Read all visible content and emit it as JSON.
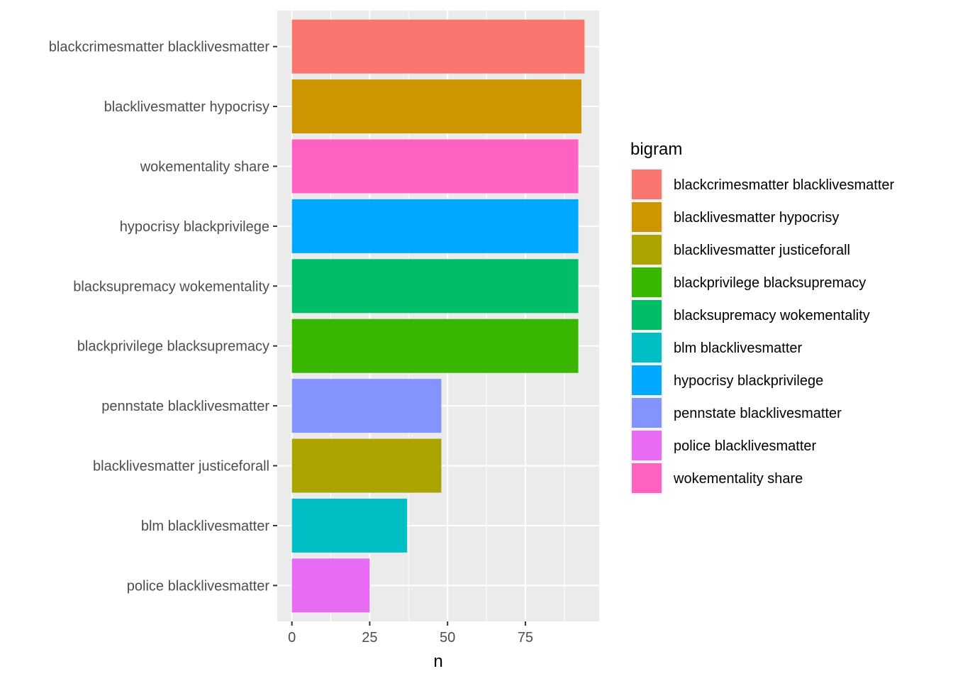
{
  "chart_data": {
    "type": "bar",
    "orientation": "horizontal",
    "categories": [
      "blackcrimesmatter blacklivesmatter",
      "blacklivesmatter hypocrisy",
      "wokementality share",
      "hypocrisy blackprivilege",
      "blacksupremacy wokementality",
      "blackprivilege blacksupremacy",
      "pennstate blacklivesmatter",
      "blacklivesmatter justiceforall",
      "blm blacklivesmatter",
      "police blacklivesmatter"
    ],
    "values": [
      94,
      93,
      92,
      92,
      92,
      92,
      48,
      48,
      37,
      25
    ],
    "colors": [
      "#F8766D",
      "#CD9600",
      "#FF61C3",
      "#00A9FF",
      "#00BE67",
      "#39B600",
      "#8494FF",
      "#ABA300",
      "#00BFC4",
      "#E76BF3"
    ],
    "xlabel": "n",
    "ylabel": "",
    "xlim": [
      -4.7,
      98.7
    ],
    "xticks": [
      0,
      25,
      50,
      75
    ],
    "grid": true,
    "legend_placement": "right",
    "legend": {
      "title": "bigram",
      "entries": [
        {
          "label": "blackcrimesmatter blacklivesmatter",
          "color": "#F8766D"
        },
        {
          "label": "blacklivesmatter hypocrisy",
          "color": "#CD9600"
        },
        {
          "label": "blacklivesmatter justiceforall",
          "color": "#ABA300"
        },
        {
          "label": "blackprivilege blacksupremacy",
          "color": "#39B600"
        },
        {
          "label": "blacksupremacy wokementality",
          "color": "#00BE67"
        },
        {
          "label": "blm blacklivesmatter",
          "color": "#00BFC4"
        },
        {
          "label": "hypocrisy blackprivilege",
          "color": "#00A9FF"
        },
        {
          "label": "pennstate blacklivesmatter",
          "color": "#8494FF"
        },
        {
          "label": "police blacklivesmatter",
          "color": "#E76BF3"
        },
        {
          "label": "wokementality share",
          "color": "#FF61C3"
        }
      ]
    }
  }
}
